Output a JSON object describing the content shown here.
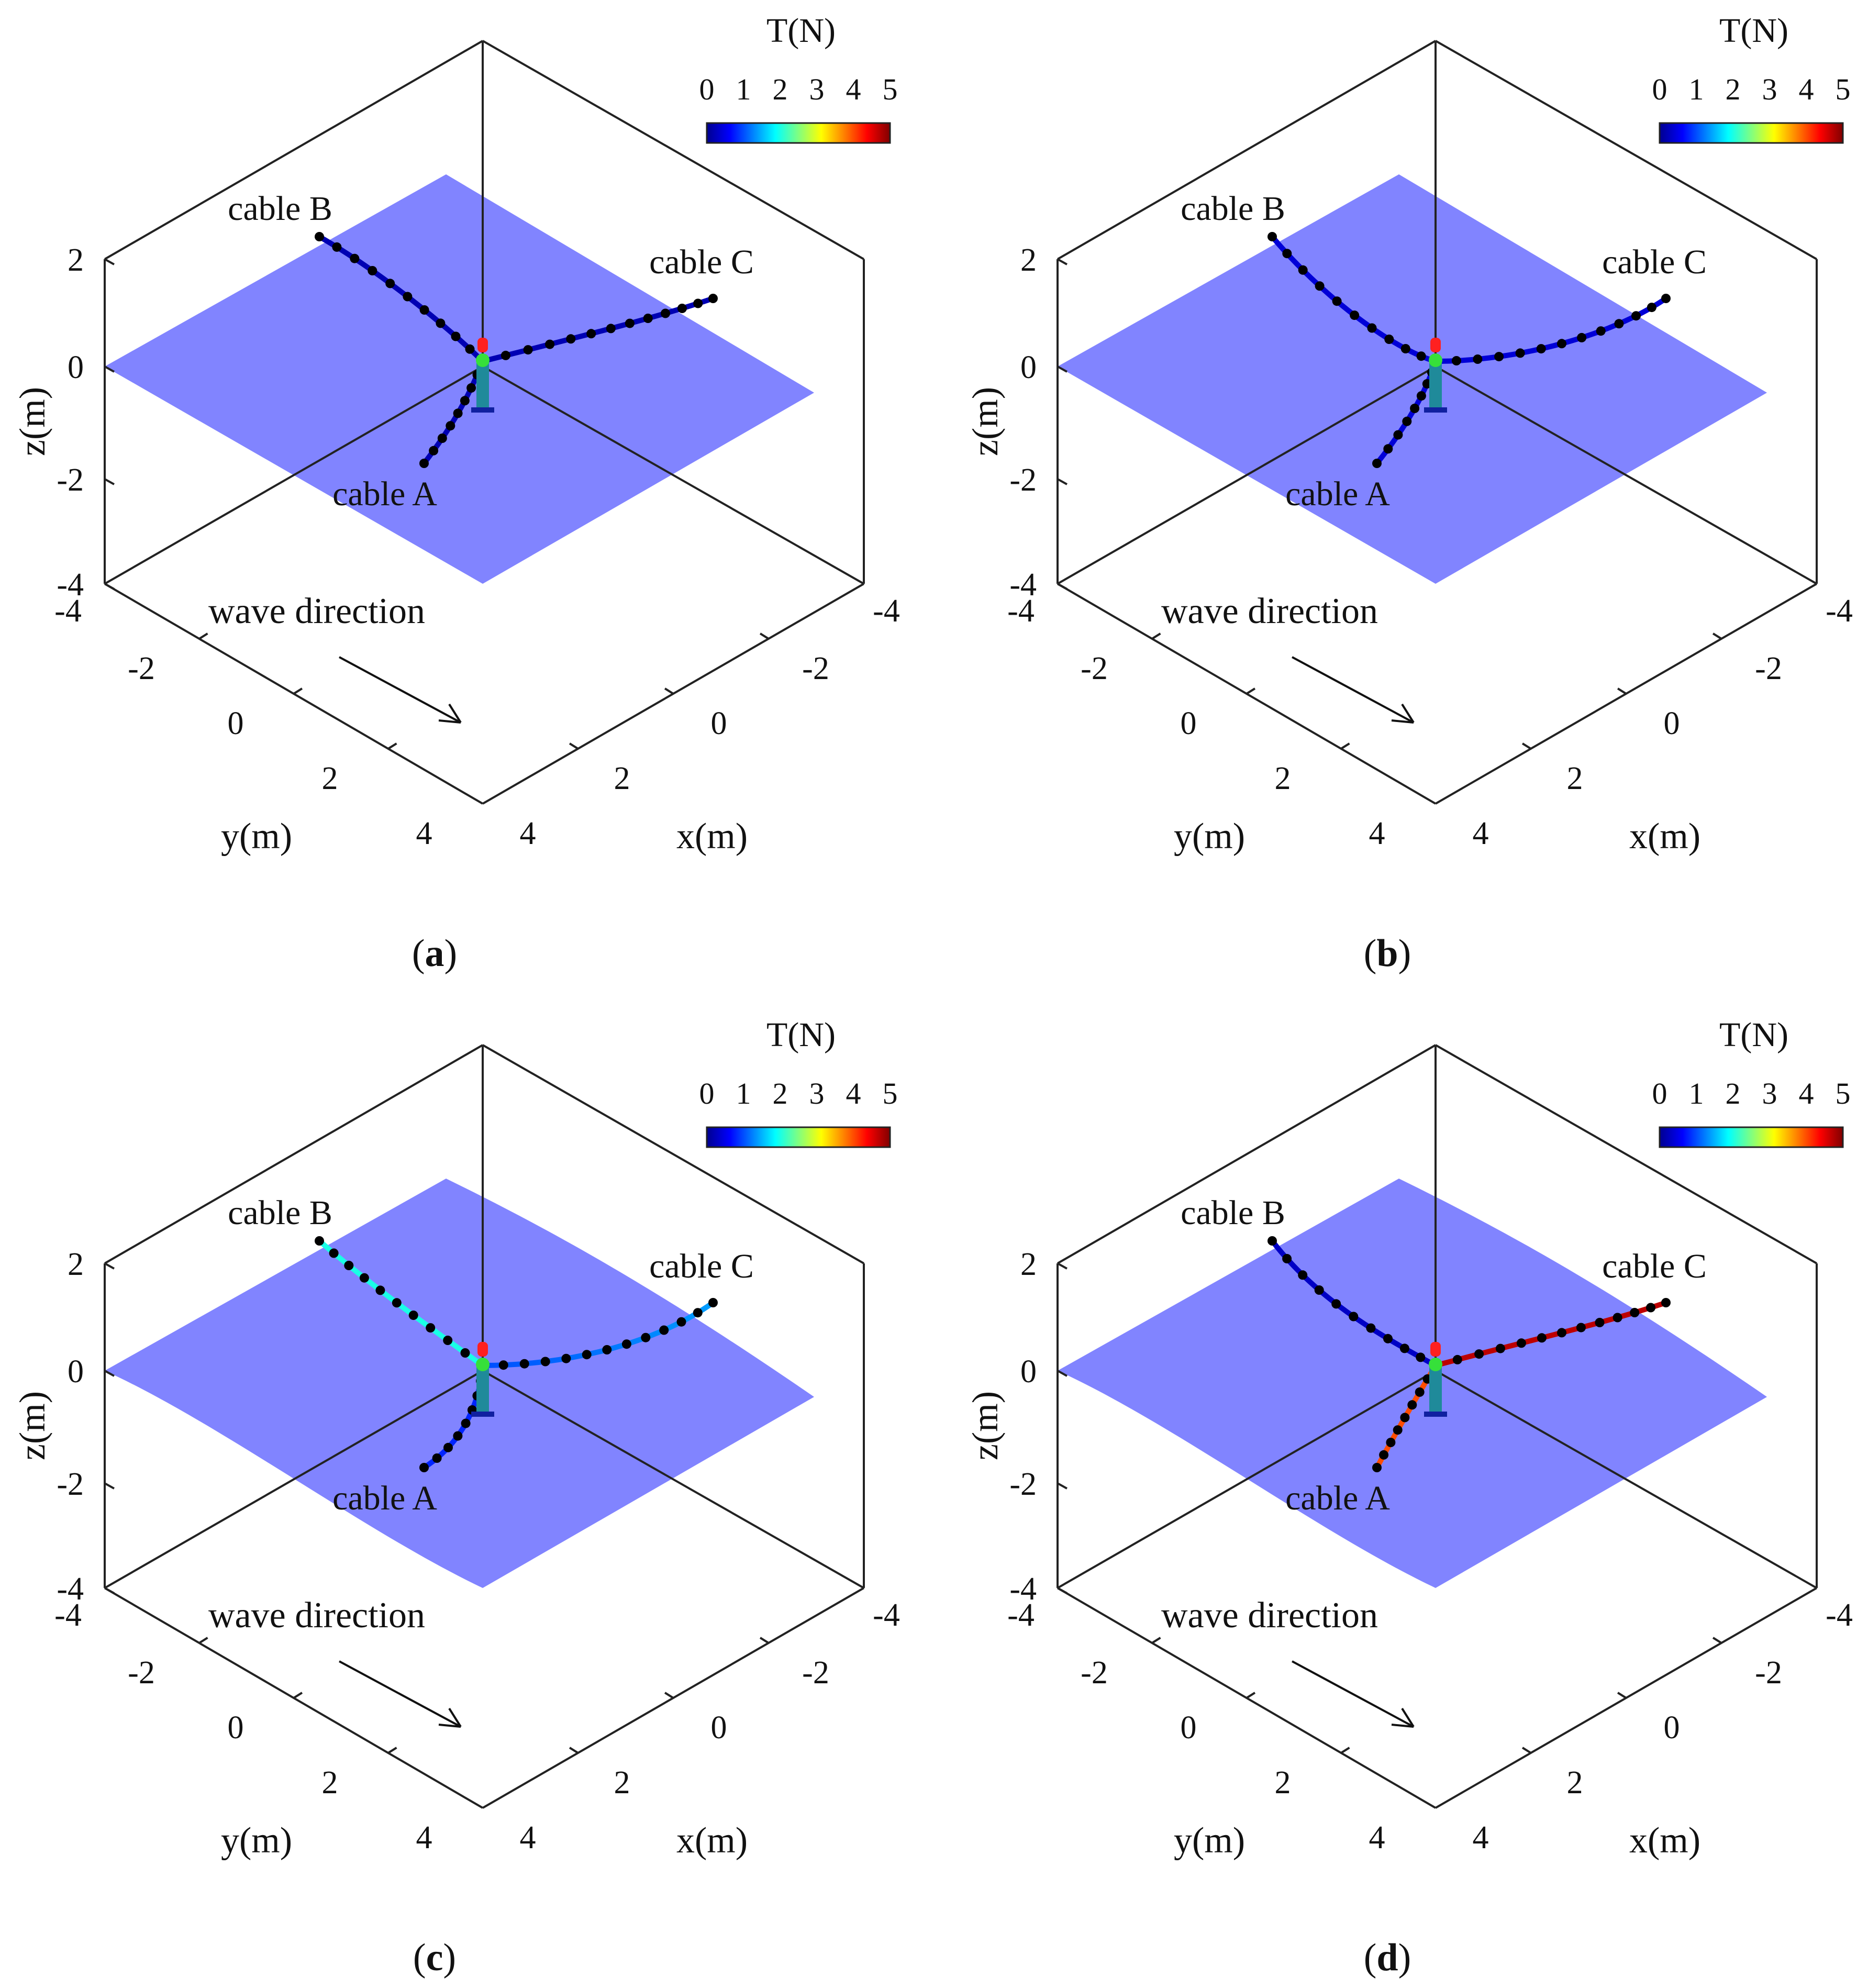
{
  "figure": {
    "colors": {
      "plane_fill": "#7a7dff",
      "axis_line": "#222222",
      "node_fill": "#000000",
      "buoy_top": "#ff2020",
      "buoy_joint": "#36e03a",
      "buoy_body": "#1f8a9a",
      "buoy_base": "#1020a0"
    },
    "colorbar": {
      "title": "T(N)",
      "ticks": [
        "0",
        "1",
        "2",
        "3",
        "4",
        "5"
      ],
      "range": [
        0,
        5
      ],
      "colormap": "jet",
      "stops": [
        "#00008f",
        "#0000ff",
        "#0080ff",
        "#00ffff",
        "#80ff80",
        "#ffff00",
        "#ff8000",
        "#ff0000",
        "#800000"
      ]
    },
    "axis_labels": {
      "x": "x(m)",
      "y": "y(m)",
      "z": "z(m)"
    },
    "tick_labels": {
      "z": [
        "2",
        "0",
        "-2",
        "-4"
      ],
      "y": [
        "-4",
        "-2",
        "0",
        "2",
        "4"
      ],
      "x": [
        "-4",
        "-2",
        "0",
        "2",
        "4"
      ]
    },
    "annotation": "wave direction",
    "cable_labels": {
      "A": "cable A",
      "B": "cable B",
      "C": "cable C"
    },
    "panels": [
      {
        "id": "a",
        "caption_open": "(",
        "caption_letter": "a",
        "caption_close": ")",
        "surface": "flat",
        "chart_data": {
          "type": "3d-line",
          "xlabel": "x(m)",
          "ylabel": "y(m)",
          "zlabel": "z(m)",
          "xlim": [
            -4,
            4
          ],
          "ylim": [
            -4,
            4
          ],
          "zlim": [
            -4,
            2
          ],
          "color_variable": "T(N)",
          "clim": [
            0,
            5
          ],
          "series": [
            {
              "name": "cable A",
              "tension": [
                0.2,
                0.2
              ],
              "node_count": 8
            },
            {
              "name": "cable B",
              "tension": [
                0.2,
                0.2
              ],
              "node_count": 10
            },
            {
              "name": "cable C",
              "tension": [
                0.2,
                0.2
              ],
              "node_count": 12
            }
          ]
        }
      },
      {
        "id": "b",
        "caption_open": "(",
        "caption_letter": "b",
        "caption_close": ")",
        "surface": "flat",
        "chart_data": {
          "type": "3d-line",
          "xlabel": "x(m)",
          "ylabel": "y(m)",
          "zlabel": "z(m)",
          "xlim": [
            -4,
            4
          ],
          "ylim": [
            -4,
            4
          ],
          "zlim": [
            -4,
            2
          ],
          "color_variable": "T(N)",
          "clim": [
            0,
            5
          ],
          "series": [
            {
              "name": "cable A",
              "tension": [
                0.4,
                0.4
              ],
              "node_count": 8
            },
            {
              "name": "cable B",
              "tension": [
                0.4,
                0.4
              ],
              "node_count": 10
            },
            {
              "name": "cable C",
              "tension": [
                0.4,
                0.4
              ],
              "node_count": 12
            }
          ]
        }
      },
      {
        "id": "c",
        "caption_open": "(",
        "caption_letter": "c",
        "caption_close": ")",
        "surface": "wavy",
        "chart_data": {
          "type": "3d-line",
          "xlabel": "x(m)",
          "ylabel": "y(m)",
          "zlabel": "z(m)",
          "xlim": [
            -4,
            4
          ],
          "ylim": [
            -4,
            4
          ],
          "zlim": [
            -4,
            2
          ],
          "color_variable": "T(N)",
          "clim": [
            0,
            5
          ],
          "series": [
            {
              "name": "cable A",
              "tension": [
                0.8,
                0.8
              ],
              "node_count": 8
            },
            {
              "name": "cable B",
              "tension": [
                2.0,
                2.0
              ],
              "node_count": 10
            },
            {
              "name": "cable C",
              "tension": [
                1.0,
                1.4
              ],
              "node_count": 12
            }
          ]
        }
      },
      {
        "id": "d",
        "caption_open": "(",
        "caption_letter": "d",
        "caption_close": ")",
        "surface": "wavy",
        "chart_data": {
          "type": "3d-line",
          "xlabel": "x(m)",
          "ylabel": "y(m)",
          "zlabel": "z(m)",
          "xlim": [
            -4,
            4
          ],
          "ylim": [
            -4,
            4
          ],
          "zlim": [
            -4,
            2
          ],
          "color_variable": "T(N)",
          "clim": [
            0,
            5
          ],
          "series": [
            {
              "name": "cable A",
              "tension": [
                4.0,
                4.0
              ],
              "node_count": 8
            },
            {
              "name": "cable B",
              "tension": [
                0.3,
                0.3
              ],
              "node_count": 10
            },
            {
              "name": "cable C",
              "tension": [
                4.7,
                4.7
              ],
              "node_count": 12
            }
          ]
        }
      }
    ]
  }
}
